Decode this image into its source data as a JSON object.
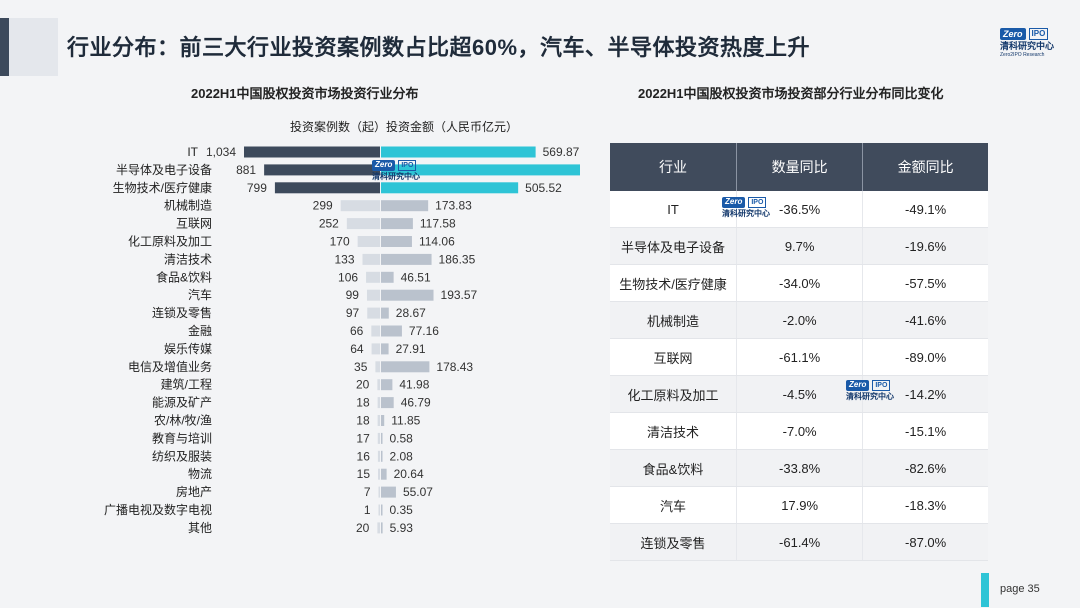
{
  "header": {
    "title": "行业分布：前三大行业投资案例数占比超60%，汽车、半导体投资热度上升"
  },
  "logo": {
    "zero": "Zero",
    "ipo": "IPO",
    "cn": "清科研究中心",
    "en": "Zero2IPO Research"
  },
  "left_chart": {
    "title": "2022H1中国股权投资市场投资行业分布"
  },
  "right_table": {
    "title": "2022H1中国股权投资市场投资部分行业分布同比变化",
    "headers": [
      "行业",
      "数量同比",
      "金额同比"
    ],
    "rows": [
      [
        "IT",
        "-36.5%",
        "-49.1%"
      ],
      [
        "半导体及电子设备",
        "9.7%",
        "-19.6%"
      ],
      [
        "生物技术/医疗健康",
        "-34.0%",
        "-57.5%"
      ],
      [
        "机械制造",
        "-2.0%",
        "-41.6%"
      ],
      [
        "互联网",
        "-61.1%",
        "-89.0%"
      ],
      [
        "化工原料及加工",
        "-4.5%",
        "-14.2%"
      ],
      [
        "清洁技术",
        "-7.0%",
        "-15.1%"
      ],
      [
        "食品&饮料",
        "-33.8%",
        "-82.6%"
      ],
      [
        "汽车",
        "17.9%",
        "-18.3%"
      ],
      [
        "连锁及零售",
        "-61.4%",
        "-87.0%"
      ]
    ]
  },
  "footer": {
    "page": "page  35"
  },
  "colors": {
    "count_top": "#3d4a5c",
    "count_rest": "#d7dce3",
    "amount_top": "#2ec4d6",
    "amount_rest": "#bac2cd",
    "header_bg": "#404b5c"
  },
  "chart_data": {
    "type": "bar",
    "orientation": "horizontal-diverging",
    "legend": "投资案例数（起）投资金额（人民币亿元）",
    "categories": [
      "IT",
      "半导体及电子设备",
      "生物技术/医疗健康",
      "机械制造",
      "互联网",
      "化工原料及加工",
      "清洁技术",
      "食品&饮料",
      "汽车",
      "连锁及零售",
      "金融",
      "娱乐传媒",
      "电信及增值业务",
      "建筑/工程",
      "能源及矿产",
      "农/林/牧/渔",
      "教育与培训",
      "纺织及服装",
      "物流",
      "房地产",
      "广播电视及数字电视",
      "其他"
    ],
    "series": [
      {
        "name": "投资案例数（起）",
        "values": [
          1034,
          881,
          799,
          299,
          252,
          170,
          133,
          106,
          99,
          97,
          66,
          64,
          35,
          20,
          18,
          18,
          17,
          16,
          15,
          7,
          1,
          20
        ],
        "labels": [
          "1,034",
          "881",
          "799",
          "299",
          "252",
          "170",
          "133",
          "106",
          "99",
          "97",
          "66",
          "64",
          "35",
          "20",
          "18",
          "18",
          "17",
          "16",
          "15",
          "7",
          "1",
          "20"
        ]
      },
      {
        "name": "投资金额（人民币亿元）",
        "values": [
          569.87,
          744.55,
          505.52,
          173.83,
          117.58,
          114.06,
          186.35,
          46.51,
          193.57,
          28.67,
          77.16,
          27.91,
          178.43,
          41.98,
          46.79,
          11.85,
          0.58,
          2.08,
          20.64,
          55.07,
          0.35,
          5.93
        ],
        "labels": [
          "569.87",
          "744.55",
          "505.52",
          "173.83",
          "117.58",
          "114.06",
          "186.35",
          "46.51",
          "193.57",
          "28.67",
          "77.16",
          "27.91",
          "178.43",
          "41.98",
          "46.79",
          "11.85",
          "0.58",
          "2.08",
          "20.64",
          "55.07",
          "0.35",
          "5.93"
        ]
      }
    ]
  }
}
